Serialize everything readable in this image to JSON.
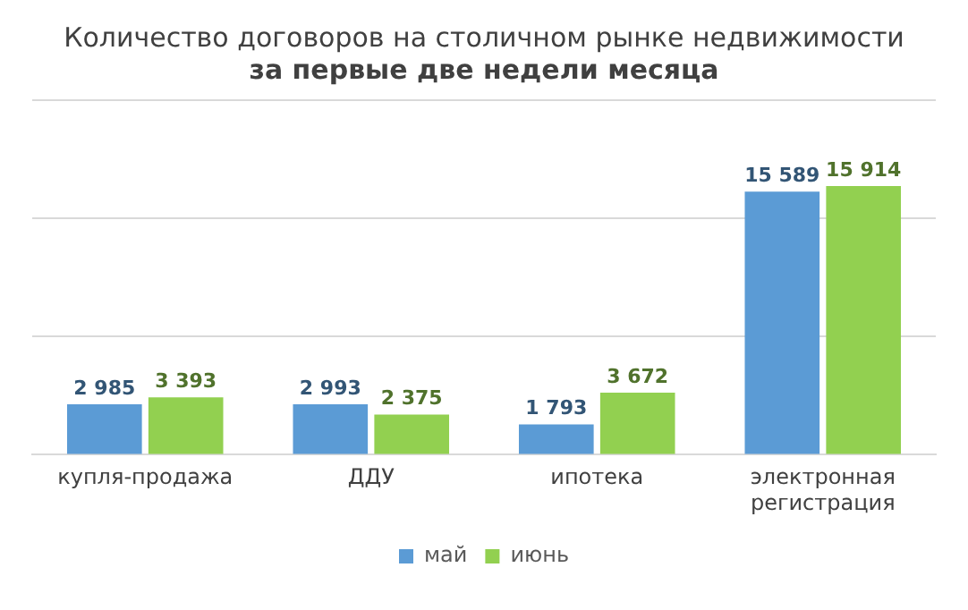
{
  "chart_data": {
    "type": "bar",
    "title": "Количество договоров на столичном рынке недвижимости",
    "subtitle": "за первые две недели месяца",
    "categories": [
      "купля-продажа",
      "ДДУ",
      "ипотека",
      "электронная регистрация"
    ],
    "series": [
      {
        "name": "май",
        "color": "#5b9bd5",
        "values": [
          2985,
          2993,
          1793,
          15589
        ],
        "value_labels": [
          "2 985",
          "2 993",
          "1 793",
          "15 589"
        ]
      },
      {
        "name": "июнь",
        "color": "#92d050",
        "values": [
          3393,
          2375,
          3672,
          15914
        ],
        "value_labels": [
          "3 393",
          "2 375",
          "3 672",
          "15 914"
        ]
      }
    ],
    "ylim": [
      0,
      21000
    ],
    "yticks": [
      {
        "value": 0,
        "label": null
      },
      {
        "value": 7000,
        "label": null
      },
      {
        "value": 14000,
        "label": null
      },
      {
        "value": 21000,
        "label": null
      }
    ],
    "grid": "y",
    "legend": "bottom",
    "tick_labels": "x"
  }
}
